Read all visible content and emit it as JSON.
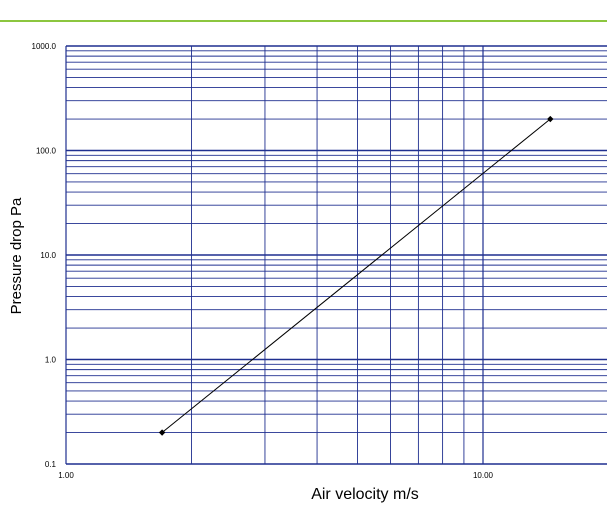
{
  "colors": {
    "accent_rule": "#8cc63f",
    "grid": "#1f2f8f",
    "series_line": "#000000",
    "marker": "#000000",
    "text": "#000000"
  },
  "chart_data": {
    "type": "line",
    "title": "",
    "xlabel": "Air velocity m/s",
    "ylabel": "Pressure drop Pa",
    "x_scale": "log",
    "y_scale": "log",
    "xlim": [
      1.0,
      30.0
    ],
    "ylim": [
      0.1,
      1000.0
    ],
    "grid": true,
    "legend": "none",
    "x_tick_labels": [
      "1.00",
      "10.00"
    ],
    "x_tick_values": [
      1.0,
      10.0
    ],
    "y_tick_labels": [
      "0.1",
      "1.0",
      "10.0",
      "100.0",
      "1000.0"
    ],
    "y_tick_values": [
      0.1,
      1.0,
      10.0,
      100.0,
      1000.0
    ],
    "series": [
      {
        "x": [
          1.7,
          14.5
        ],
        "y": [
          0.2,
          200.0
        ]
      }
    ]
  }
}
